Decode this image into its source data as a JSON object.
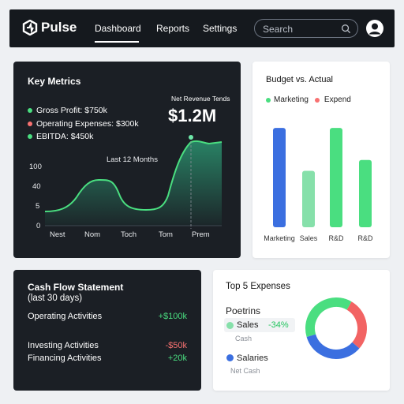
{
  "app": {
    "name": "Pulse"
  },
  "nav": {
    "dashboard": "Dashboard",
    "reports": "Reports",
    "settings": "Settings"
  },
  "search": {
    "placeholder": "Search"
  },
  "key_metrics": {
    "title": "Key Metrics",
    "items": [
      {
        "label": "Gross Profit: $750k",
        "color": "#4ade80"
      },
      {
        "label": "Operating Expenses: $300k",
        "color": "#f87171"
      },
      {
        "label": "EBITDA: $450k",
        "color": "#4ade80"
      }
    ],
    "trend_label": "Net Revenue Tends",
    "big_value": "$1.2M",
    "chart_caption": "Last 12 Months",
    "chart_data": {
      "type": "area",
      "x_ticks": [
        "Nest",
        "Nom",
        "Toch",
        "Tom",
        "Prem"
      ],
      "y_ticks": [
        "100",
        "40",
        "5",
        "0"
      ],
      "accent": "#4ade80"
    }
  },
  "budget": {
    "title": "Budget vs. Actual",
    "legend": [
      {
        "label": "Marketing",
        "color": "#4ade80"
      },
      {
        "label": " Expend",
        "color": "#f87171"
      }
    ],
    "chart_data": {
      "type": "bar",
      "categories": [
        "Marketing",
        "Sales",
        "R&D",
        "R&D"
      ],
      "values": [
        155,
        88,
        155,
        105
      ],
      "colors": [
        "#3b6fe0",
        "#86e0aa",
        "#4ade80",
        "#4ade80"
      ],
      "ylim": [
        0,
        160
      ]
    }
  },
  "cashflow": {
    "title": "Cash Flow Statement",
    "subtitle": "(last 30 days)",
    "rows": [
      {
        "label": "Operating Activities",
        "value": "+$100k"
      },
      {
        "label": "Investing Activities",
        "value": "-$50k"
      },
      {
        "label": "Financing Activities",
        "value": "+20k"
      }
    ]
  },
  "expenses": {
    "title": "Top 5 Expenses",
    "heading": "Poetrins",
    "items": [
      {
        "label": "Sales",
        "pct": "-34%",
        "sub": "Cash",
        "color": "#86e0aa"
      },
      {
        "label": "Salaries",
        "sub": "Net Cash",
        "color": "#3b6fe0"
      }
    ],
    "chart_data": {
      "type": "pie",
      "values": [
        28,
        34,
        38
      ],
      "colors": [
        "#f26363",
        "#3b6fe0",
        "#4ade80"
      ]
    }
  }
}
